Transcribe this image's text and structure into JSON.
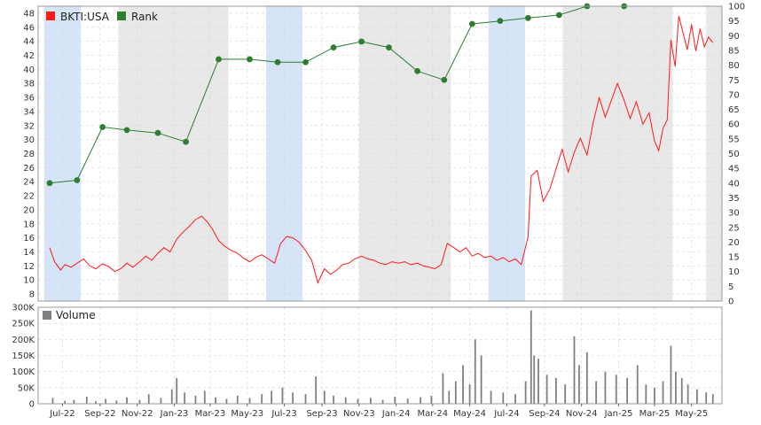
{
  "chart_data": [
    {
      "type": "line",
      "title": "",
      "xlabel": "",
      "ylabel": "",
      "ylim": [
        7,
        49
      ],
      "y2lim": [
        0,
        100
      ],
      "grid": true,
      "legend_placement": "top-left",
      "legend": [
        {
          "label": "BKTI:USA",
          "color": "#ff1a1a"
        },
        {
          "label": "Rank",
          "color": "#2e7d32"
        }
      ],
      "y_ticks": [
        8,
        10,
        12,
        14,
        16,
        18,
        20,
        22,
        24,
        26,
        28,
        30,
        32,
        34,
        36,
        38,
        40,
        42,
        44,
        46,
        48
      ],
      "y2_ticks": [
        0,
        5,
        10,
        15,
        20,
        25,
        30,
        35,
        40,
        45,
        50,
        55,
        60,
        65,
        70,
        75,
        80,
        85,
        90,
        95,
        100
      ],
      "shaded_periods": [
        {
          "start": "2022-06-01",
          "end": "2022-07-31",
          "color": "#d6e4f7"
        },
        {
          "start": "2022-10-01",
          "end": "2023-03-31",
          "color": "#e8e8e8"
        },
        {
          "start": "2023-06-01",
          "end": "2023-07-31",
          "color": "#d6e4f7"
        },
        {
          "start": "2023-11-01",
          "end": "2024-03-31",
          "color": "#e8e8e8"
        },
        {
          "start": "2024-06-01",
          "end": "2024-07-31",
          "color": "#d6e4f7"
        },
        {
          "start": "2024-10-01",
          "end": "2025-03-31",
          "color": "#e8e8e8"
        },
        {
          "start": "2025-05-25",
          "end": "2025-06-20",
          "color": "#e8e8e8"
        }
      ],
      "series": [
        {
          "name": "BKTI:USA",
          "axis": "left",
          "color": "#ff1a1a",
          "points": [
            [
              "2022-06-10",
              14.6
            ],
            [
              "2022-06-18",
              12.6
            ],
            [
              "2022-06-28",
              11.4
            ],
            [
              "2022-07-05",
              12.2
            ],
            [
              "2022-07-15",
              11.8
            ],
            [
              "2022-07-25",
              12.4
            ],
            [
              "2022-08-05",
              13.0
            ],
            [
              "2022-08-15",
              12.0
            ],
            [
              "2022-08-25",
              11.6
            ],
            [
              "2022-09-05",
              12.3
            ],
            [
              "2022-09-15",
              11.9
            ],
            [
              "2022-09-25",
              11.2
            ],
            [
              "2022-10-05",
              11.6
            ],
            [
              "2022-10-15",
              12.4
            ],
            [
              "2022-10-25",
              11.8
            ],
            [
              "2022-11-05",
              12.6
            ],
            [
              "2022-11-15",
              13.4
            ],
            [
              "2022-11-25",
              12.8
            ],
            [
              "2022-12-05",
              13.8
            ],
            [
              "2022-12-15",
              14.6
            ],
            [
              "2022-12-25",
              14.0
            ],
            [
              "2023-01-05",
              15.8
            ],
            [
              "2023-01-15",
              16.8
            ],
            [
              "2023-01-25",
              17.6
            ],
            [
              "2023-02-05",
              18.6
            ],
            [
              "2023-02-15",
              19.1
            ],
            [
              "2023-02-25",
              18.2
            ],
            [
              "2023-03-05",
              17.2
            ],
            [
              "2023-03-15",
              15.6
            ],
            [
              "2023-03-25",
              14.8
            ],
            [
              "2023-04-05",
              14.2
            ],
            [
              "2023-04-15",
              13.8
            ],
            [
              "2023-04-25",
              13.1
            ],
            [
              "2023-05-05",
              12.6
            ],
            [
              "2023-05-15",
              13.2
            ],
            [
              "2023-05-25",
              13.6
            ],
            [
              "2023-06-05",
              13.0
            ],
            [
              "2023-06-15",
              12.4
            ],
            [
              "2023-06-25",
              15.2
            ],
            [
              "2023-07-05",
              16.2
            ],
            [
              "2023-07-15",
              16.0
            ],
            [
              "2023-07-25",
              15.4
            ],
            [
              "2023-08-05",
              14.2
            ],
            [
              "2023-08-15",
              12.8
            ],
            [
              "2023-08-25",
              9.6
            ],
            [
              "2023-09-05",
              11.6
            ],
            [
              "2023-09-15",
              10.8
            ],
            [
              "2023-09-25",
              11.4
            ],
            [
              "2023-10-05",
              12.2
            ],
            [
              "2023-10-15",
              12.4
            ],
            [
              "2023-10-25",
              13.0
            ],
            [
              "2023-11-05",
              13.4
            ],
            [
              "2023-11-15",
              13.0
            ],
            [
              "2023-11-25",
              12.8
            ],
            [
              "2023-12-05",
              12.4
            ],
            [
              "2023-12-15",
              12.2
            ],
            [
              "2023-12-25",
              12.6
            ],
            [
              "2024-01-05",
              12.4
            ],
            [
              "2024-01-15",
              12.6
            ],
            [
              "2024-01-25",
              12.2
            ],
            [
              "2024-02-05",
              12.4
            ],
            [
              "2024-02-15",
              12.0
            ],
            [
              "2024-02-25",
              11.8
            ],
            [
              "2024-03-05",
              11.6
            ],
            [
              "2024-03-15",
              12.2
            ],
            [
              "2024-03-25",
              15.2
            ],
            [
              "2024-04-05",
              14.6
            ],
            [
              "2024-04-15",
              14.0
            ],
            [
              "2024-04-25",
              14.6
            ],
            [
              "2024-05-05",
              13.4
            ],
            [
              "2024-05-15",
              13.8
            ],
            [
              "2024-05-25",
              13.2
            ],
            [
              "2024-06-05",
              13.4
            ],
            [
              "2024-06-15",
              12.8
            ],
            [
              "2024-06-25",
              13.2
            ],
            [
              "2024-07-05",
              12.6
            ],
            [
              "2024-07-15",
              13.0
            ],
            [
              "2024-07-25",
              12.2
            ],
            [
              "2024-08-05",
              16.2
            ],
            [
              "2024-08-10",
              24.8
            ],
            [
              "2024-08-20",
              25.6
            ],
            [
              "2024-08-30",
              21.2
            ],
            [
              "2024-09-10",
              23.0
            ],
            [
              "2024-09-20",
              25.8
            ],
            [
              "2024-09-30",
              28.6
            ],
            [
              "2024-10-10",
              25.4
            ],
            [
              "2024-10-20",
              28.2
            ],
            [
              "2024-10-30",
              30.2
            ],
            [
              "2024-11-10",
              27.8
            ],
            [
              "2024-11-20",
              32.4
            ],
            [
              "2024-11-30",
              36.0
            ],
            [
              "2024-12-10",
              33.2
            ],
            [
              "2024-12-20",
              35.6
            ],
            [
              "2024-12-30",
              38.0
            ],
            [
              "2025-01-10",
              35.6
            ],
            [
              "2025-01-20",
              33.0
            ],
            [
              "2025-01-30",
              35.4
            ],
            [
              "2025-02-10",
              32.2
            ],
            [
              "2025-02-20",
              33.8
            ],
            [
              "2025-03-01",
              29.8
            ],
            [
              "2025-03-08",
              28.4
            ],
            [
              "2025-03-15",
              31.6
            ],
            [
              "2025-03-22",
              32.8
            ],
            [
              "2025-03-28",
              44.2
            ],
            [
              "2025-04-04",
              40.4
            ],
            [
              "2025-04-10",
              47.6
            ],
            [
              "2025-04-17",
              45.2
            ],
            [
              "2025-04-24",
              42.8
            ],
            [
              "2025-05-01",
              46.4
            ],
            [
              "2025-05-08",
              42.6
            ],
            [
              "2025-05-15",
              45.8
            ],
            [
              "2025-05-22",
              43.2
            ],
            [
              "2025-05-29",
              44.6
            ],
            [
              "2025-06-05",
              43.8
            ]
          ]
        },
        {
          "name": "Rank",
          "axis": "right",
          "color": "#2e7d32",
          "points": [
            [
              "2022-06-10",
              40
            ],
            [
              "2022-07-25",
              41
            ],
            [
              "2022-09-05",
              59
            ],
            [
              "2022-10-15",
              58
            ],
            [
              "2022-12-05",
              57
            ],
            [
              "2023-01-20",
              54
            ],
            [
              "2023-03-15",
              82
            ],
            [
              "2023-05-05",
              82
            ],
            [
              "2023-06-20",
              81
            ],
            [
              "2023-08-05",
              81
            ],
            [
              "2023-09-20",
              86
            ],
            [
              "2023-11-05",
              88
            ],
            [
              "2023-12-20",
              86
            ],
            [
              "2024-02-05",
              78
            ],
            [
              "2024-03-20",
              75
            ],
            [
              "2024-05-05",
              94
            ],
            [
              "2024-06-20",
              95
            ],
            [
              "2024-08-05",
              96
            ],
            [
              "2024-09-25",
              97
            ],
            [
              "2024-11-10",
              100
            ],
            [
              "2025-01-10",
              100
            ]
          ]
        }
      ]
    },
    {
      "type": "bar",
      "title": "",
      "ylim": [
        0,
        300000
      ],
      "grid": true,
      "legend_placement": "top-left",
      "legend": [
        {
          "label": "Volume",
          "color": "#808080"
        }
      ],
      "y_tick_labels": [
        "0",
        "50K",
        "100K",
        "150K",
        "200K",
        "250K",
        "300K"
      ],
      "y_tick_values": [
        0,
        50000,
        100000,
        150000,
        200000,
        250000,
        300000
      ],
      "x_tick_labels": [
        "Jul-22",
        "Sep-22",
        "Nov-22",
        "Jan-23",
        "Mar-23",
        "May-23",
        "Jul-23",
        "Sep-23",
        "Nov-23",
        "Jan-24",
        "Mar-24",
        "May-24",
        "Jul-24",
        "Sep-24",
        "Nov-24",
        "Jan-25",
        "Mar-25",
        "May-25"
      ],
      "x_tick_dates": [
        "2022-07-01",
        "2022-09-01",
        "2022-11-01",
        "2023-01-01",
        "2023-03-01",
        "2023-05-01",
        "2023-07-01",
        "2023-09-01",
        "2023-11-01",
        "2024-01-01",
        "2024-03-01",
        "2024-05-01",
        "2024-07-01",
        "2024-09-01",
        "2024-11-01",
        "2025-01-01",
        "2025-03-01",
        "2025-05-01"
      ],
      "series": [
        {
          "name": "Volume",
          "color": "#808080",
          "points": [
            [
              "2022-06-15",
              18000
            ],
            [
              "2022-07-05",
              9000
            ],
            [
              "2022-07-20",
              12000
            ],
            [
              "2022-08-10",
              22000
            ],
            [
              "2022-08-25",
              8000
            ],
            [
              "2022-09-10",
              15000
            ],
            [
              "2022-09-28",
              10000
            ],
            [
              "2022-10-15",
              20000
            ],
            [
              "2022-11-05",
              12000
            ],
            [
              "2022-11-20",
              30000
            ],
            [
              "2022-12-10",
              18000
            ],
            [
              "2022-12-28",
              45000
            ],
            [
              "2023-01-05",
              80000
            ],
            [
              "2023-01-18",
              35000
            ],
            [
              "2023-02-05",
              25000
            ],
            [
              "2023-02-20",
              40000
            ],
            [
              "2023-03-10",
              20000
            ],
            [
              "2023-03-28",
              15000
            ],
            [
              "2023-04-15",
              25000
            ],
            [
              "2023-05-05",
              18000
            ],
            [
              "2023-05-25",
              30000
            ],
            [
              "2023-06-10",
              40000
            ],
            [
              "2023-06-28",
              50000
            ],
            [
              "2023-07-15",
              35000
            ],
            [
              "2023-08-05",
              30000
            ],
            [
              "2023-08-22",
              85000
            ],
            [
              "2023-09-05",
              40000
            ],
            [
              "2023-09-20",
              25000
            ],
            [
              "2023-10-10",
              20000
            ],
            [
              "2023-10-30",
              15000
            ],
            [
              "2023-11-20",
              18000
            ],
            [
              "2023-12-10",
              12000
            ],
            [
              "2023-12-30",
              22000
            ],
            [
              "2024-01-20",
              16000
            ],
            [
              "2024-02-10",
              20000
            ],
            [
              "2024-02-28",
              25000
            ],
            [
              "2024-03-18",
              95000
            ],
            [
              "2024-03-28",
              40000
            ],
            [
              "2024-04-08",
              70000
            ],
            [
              "2024-04-20",
              120000
            ],
            [
              "2024-05-01",
              60000
            ],
            [
              "2024-05-10",
              200000
            ],
            [
              "2024-05-20",
              150000
            ],
            [
              "2024-06-05",
              40000
            ],
            [
              "2024-06-25",
              35000
            ],
            [
              "2024-07-15",
              30000
            ],
            [
              "2024-08-01",
              70000
            ],
            [
              "2024-08-10",
              290000
            ],
            [
              "2024-08-15",
              150000
            ],
            [
              "2024-08-22",
              140000
            ],
            [
              "2024-09-05",
              90000
            ],
            [
              "2024-09-20",
              80000
            ],
            [
              "2024-10-05",
              60000
            ],
            [
              "2024-10-20",
              210000
            ],
            [
              "2024-10-28",
              120000
            ],
            [
              "2024-11-10",
              160000
            ],
            [
              "2024-11-25",
              70000
            ],
            [
              "2024-12-10",
              100000
            ],
            [
              "2024-12-28",
              90000
            ],
            [
              "2025-01-15",
              80000
            ],
            [
              "2025-02-01",
              120000
            ],
            [
              "2025-02-15",
              60000
            ],
            [
              "2025-03-01",
              50000
            ],
            [
              "2025-03-15",
              70000
            ],
            [
              "2025-03-28",
              180000
            ],
            [
              "2025-04-05",
              100000
            ],
            [
              "2025-04-15",
              80000
            ],
            [
              "2025-04-25",
              60000
            ],
            [
              "2025-05-10",
              45000
            ],
            [
              "2025-05-25",
              35000
            ],
            [
              "2025-06-05",
              30000
            ]
          ]
        }
      ]
    }
  ]
}
